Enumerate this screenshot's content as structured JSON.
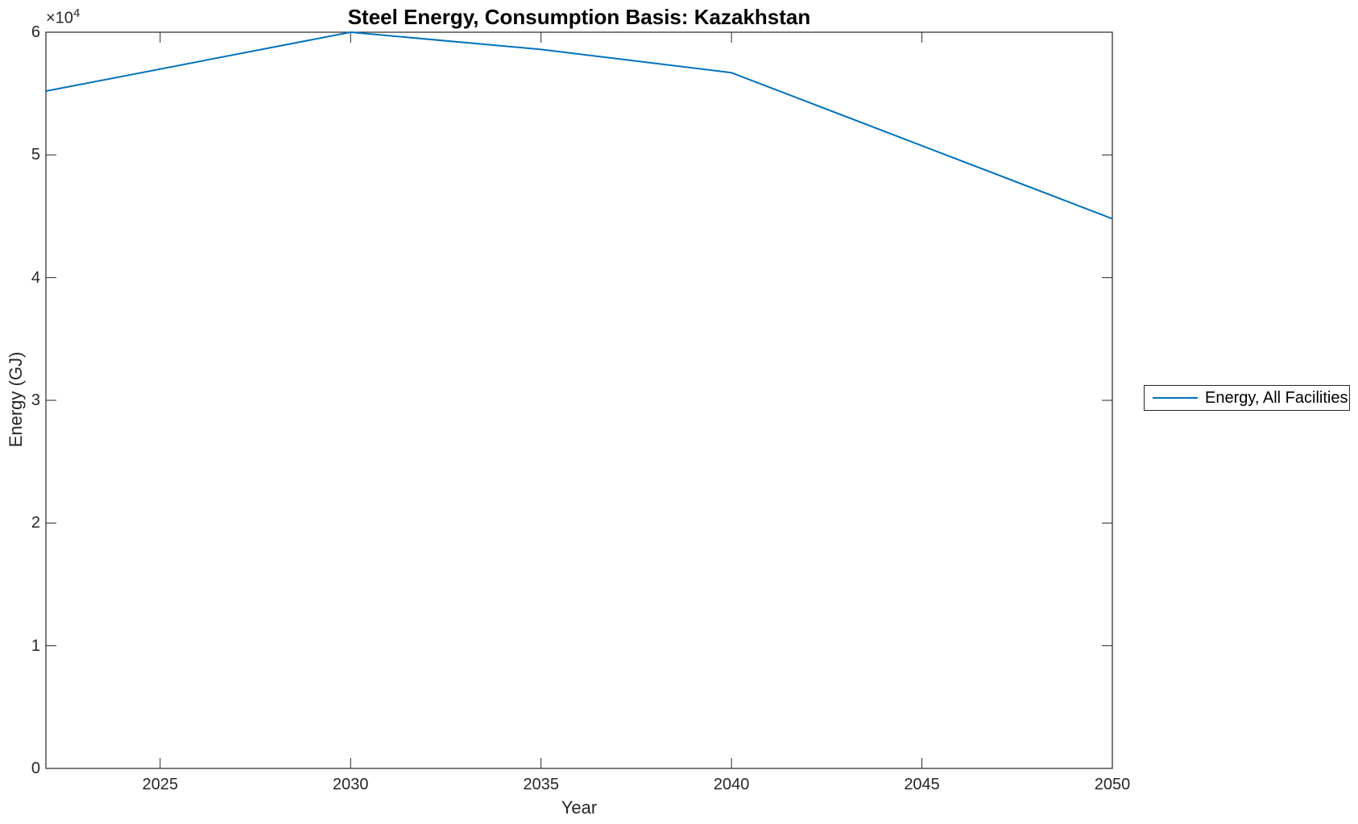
{
  "figure": {
    "background": "#ffffff",
    "axes_color": "#262626",
    "title": "Steel Energy, Consumption Basis: Kazakhstan"
  },
  "offset_label": {
    "base": "×10",
    "exp": "4"
  },
  "legend": {
    "position": "east",
    "entries": [
      {
        "label": "Energy, All Facilities",
        "color": "#0072BD"
      }
    ]
  },
  "chart_data": {
    "type": "line",
    "title": "Steel Energy, Consumption Basis: Kazakhstan",
    "xlabel": "Year",
    "ylabel": "Energy (GJ)",
    "y_axis_multiplier": "×10^4",
    "xlim": [
      2022,
      2050
    ],
    "ylim": [
      0,
      60000
    ],
    "x_ticks": [
      2025,
      2030,
      2035,
      2040,
      2045,
      2050
    ],
    "y_ticks": [
      0,
      10000,
      20000,
      30000,
      40000,
      50000,
      60000
    ],
    "y_tick_labels": [
      "0",
      "1",
      "2",
      "3",
      "4",
      "5",
      "6"
    ],
    "grid": false,
    "legend_position": "east",
    "series": [
      {
        "name": "Energy, All Facilities",
        "color": "#0072BD",
        "x": [
          2022,
          2030,
          2035,
          2040,
          2050
        ],
        "y": [
          55200,
          60000,
          58600,
          56700,
          44800
        ]
      }
    ]
  }
}
